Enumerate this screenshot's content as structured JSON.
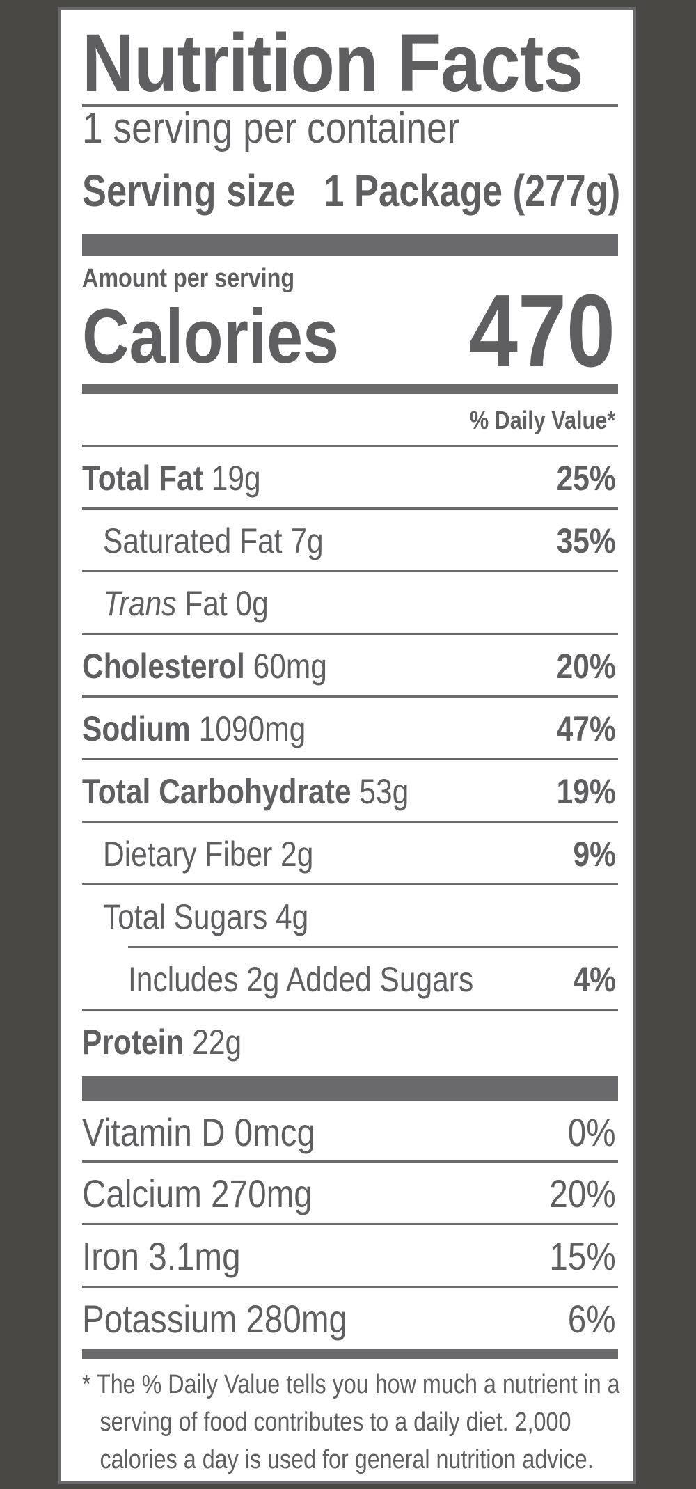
{
  "title": "Nutrition Facts",
  "servings_per_container": "1 serving per container",
  "serving_size_label": "Serving size",
  "serving_size_value": "1 Package (277g)",
  "amount_per_serving": "Amount per serving",
  "calories_label": "Calories",
  "calories_value": "470",
  "daily_value_header": "% Daily Value*",
  "nutrients": {
    "total_fat": {
      "name": "Total Fat",
      "amount": "19g",
      "dv": "25%"
    },
    "saturated_fat": {
      "name": "Saturated Fat 7g",
      "dv": "35%"
    },
    "trans_fat": {
      "name_italic": "Trans",
      "name": "Fat 0g"
    },
    "cholesterol": {
      "name": "Cholesterol",
      "amount": "60mg",
      "dv": "20%"
    },
    "sodium": {
      "name": "Sodium",
      "amount": "1090mg",
      "dv": "47%"
    },
    "total_carbohydrate": {
      "name": "Total Carbohydrate",
      "amount": "53g",
      "dv": "19%"
    },
    "dietary_fiber": {
      "name": "Dietary Fiber 2g",
      "dv": "9%"
    },
    "total_sugars": {
      "name": "Total Sugars 4g"
    },
    "added_sugars": {
      "name": "Includes 2g Added Sugars",
      "dv": "4%"
    },
    "protein": {
      "name": "Protein",
      "amount": "22g"
    }
  },
  "vitamins": [
    {
      "name": "Vitamin D 0mcg",
      "dv": "0%"
    },
    {
      "name": "Calcium 270mg",
      "dv": "20%"
    },
    {
      "name": "Iron 3.1mg",
      "dv": "15%"
    },
    {
      "name": "Potassium 280mg",
      "dv": "6%"
    }
  ],
  "footnote": {
    "line1": "* The % Daily Value tells you how much a nutrient in a",
    "line2": "serving of food contributes to a daily diet. 2,000",
    "line3": "calories a day is used for general nutrition advice."
  },
  "colors": {
    "text": "#5f5f61",
    "rule": "#6a6a6c",
    "background": "#ffffff",
    "surround": "#4a4845"
  }
}
